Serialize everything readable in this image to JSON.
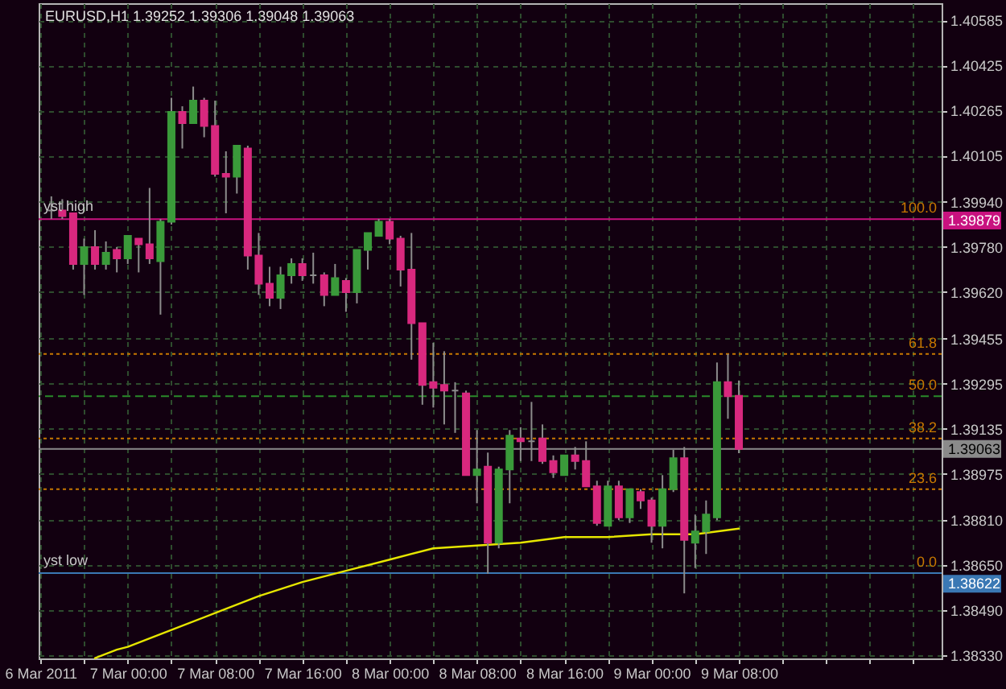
{
  "chart_data": {
    "type": "candlestick",
    "title": "EURUSD,H1 1.39252 1.39306 1.39048 1.39063",
    "x": [
      "2011-03-06T17:00",
      "2011-03-06T18:00",
      "2011-03-06T19:00",
      "2011-03-06T20:00",
      "2011-03-06T21:00",
      "2011-03-06T22:00",
      "2011-03-06T23:00",
      "2011-03-07T00:00",
      "2011-03-07T01:00",
      "2011-03-07T02:00",
      "2011-03-07T03:00",
      "2011-03-07T04:00",
      "2011-03-07T05:00",
      "2011-03-07T06:00",
      "2011-03-07T07:00",
      "2011-03-07T08:00",
      "2011-03-07T09:00",
      "2011-03-07T10:00",
      "2011-03-07T11:00",
      "2011-03-07T12:00",
      "2011-03-07T13:00",
      "2011-03-07T14:00",
      "2011-03-07T15:00",
      "2011-03-07T16:00",
      "2011-03-07T17:00",
      "2011-03-07T18:00",
      "2011-03-07T19:00",
      "2011-03-07T20:00",
      "2011-03-07T21:00",
      "2011-03-07T22:00",
      "2011-03-07T23:00",
      "2011-03-08T00:00",
      "2011-03-08T01:00",
      "2011-03-08T02:00",
      "2011-03-08T03:00",
      "2011-03-08T04:00",
      "2011-03-08T05:00",
      "2011-03-08T06:00",
      "2011-03-08T07:00",
      "2011-03-08T08:00",
      "2011-03-08T09:00",
      "2011-03-08T10:00",
      "2011-03-08T11:00",
      "2011-03-08T12:00",
      "2011-03-08T13:00",
      "2011-03-08T14:00",
      "2011-03-08T15:00",
      "2011-03-08T16:00",
      "2011-03-08T17:00",
      "2011-03-08T18:00",
      "2011-03-08T19:00",
      "2011-03-08T20:00",
      "2011-03-08T21:00",
      "2011-03-08T22:00",
      "2011-03-08T23:00",
      "2011-03-09T00:00",
      "2011-03-09T01:00",
      "2011-03-09T02:00",
      "2011-03-09T03:00",
      "2011-03-09T04:00",
      "2011-03-09T05:00",
      "2011-03-09T06:00",
      "2011-03-09T07:00",
      "2011-03-09T08:00"
    ],
    "ohlc": [
      [
        1.3991,
        1.3996,
        1.3988,
        1.3991
      ],
      [
        1.3991,
        1.3995,
        1.3988,
        1.3989
      ],
      [
        1.399,
        1.399,
        1.397,
        1.3972
      ],
      [
        1.3972,
        1.3981,
        1.3961,
        1.3978
      ],
      [
        1.3978,
        1.3984,
        1.397,
        1.3972
      ],
      [
        1.3972,
        1.398,
        1.397,
        1.3976
      ],
      [
        1.3977,
        1.3978,
        1.3969,
        1.3974
      ],
      [
        1.3974,
        1.3982,
        1.3972,
        1.3982
      ],
      [
        1.3981,
        1.3981,
        1.3969,
        1.3979
      ],
      [
        1.3979,
        1.3999,
        1.3972,
        1.3974
      ],
      [
        1.3973,
        1.3988,
        1.3954,
        1.3987
      ],
      [
        1.3987,
        1.4031,
        1.3986,
        1.4026
      ],
      [
        1.4026,
        1.4028,
        1.4013,
        1.4022
      ],
      [
        1.4022,
        1.4035,
        1.4022,
        1.403
      ],
      [
        1.403,
        1.4031,
        1.4017,
        1.4021
      ],
      [
        1.4021,
        1.403,
        1.4003,
        1.4004
      ],
      [
        1.4004,
        1.4012,
        1.399,
        1.4003
      ],
      [
        1.4003,
        1.4014,
        1.3997,
        1.4014
      ],
      [
        1.4013,
        1.4014,
        1.397,
        1.3975
      ],
      [
        1.3975,
        1.3983,
        1.3961,
        1.3965
      ],
      [
        1.3965,
        1.3971,
        1.3957,
        1.396
      ],
      [
        1.396,
        1.3971,
        1.3956,
        1.3968
      ],
      [
        1.3968,
        1.3974,
        1.3965,
        1.3972
      ],
      [
        1.3972,
        1.3974,
        1.3966,
        1.3968
      ],
      [
        1.3968,
        1.3976,
        1.3965,
        1.3968
      ],
      [
        1.3968,
        1.3969,
        1.3957,
        1.3961
      ],
      [
        1.3961,
        1.3972,
        1.3961,
        1.3967
      ],
      [
        1.3966,
        1.3967,
        1.3955,
        1.3962
      ],
      [
        1.3962,
        1.3977,
        1.3958,
        1.3977
      ],
      [
        1.3977,
        1.3983,
        1.397,
        1.3983
      ],
      [
        1.3982,
        1.3988,
        1.3982,
        1.3987
      ],
      [
        1.3987,
        1.3988,
        1.3979,
        1.3981
      ],
      [
        1.3981,
        1.3982,
        1.3964,
        1.397
      ],
      [
        1.397,
        1.3983,
        1.3938,
        1.3951
      ],
      [
        1.3951,
        1.3951,
        1.3922,
        1.3929
      ],
      [
        1.393,
        1.3944,
        1.3921,
        1.3928
      ],
      [
        1.3929,
        1.3941,
        1.3915,
        1.3927
      ],
      [
        1.3927,
        1.393,
        1.3912,
        1.3927
      ],
      [
        1.3926,
        1.3927,
        1.3897,
        1.3897
      ],
      [
        1.3897,
        1.3913,
        1.3887,
        1.3899
      ],
      [
        1.39,
        1.3905,
        1.3862,
        1.3873
      ],
      [
        1.3873,
        1.39,
        1.3871,
        1.3899
      ],
      [
        1.3899,
        1.3913,
        1.3887,
        1.3911
      ],
      [
        1.391,
        1.3914,
        1.3902,
        1.3909
      ],
      [
        1.3909,
        1.3923,
        1.3902,
        1.3909
      ],
      [
        1.391,
        1.3915,
        1.3901,
        1.3902
      ],
      [
        1.3902,
        1.3904,
        1.3896,
        1.3898
      ],
      [
        1.3897,
        1.3904,
        1.3897,
        1.3904
      ],
      [
        1.3904,
        1.3907,
        1.3899,
        1.3902
      ],
      [
        1.3902,
        1.3909,
        1.3893,
        1.3893
      ],
      [
        1.3893,
        1.3895,
        1.3879,
        1.388
      ],
      [
        1.3879,
        1.3895,
        1.3879,
        1.3893
      ],
      [
        1.3893,
        1.3895,
        1.3881,
        1.3882
      ],
      [
        1.3882,
        1.3892,
        1.388,
        1.3892
      ],
      [
        1.3891,
        1.3892,
        1.3885,
        1.3888
      ],
      [
        1.3888,
        1.3889,
        1.3873,
        1.3879
      ],
      [
        1.3879,
        1.3897,
        1.3871,
        1.3892
      ],
      [
        1.3892,
        1.3906,
        1.3891,
        1.3903
      ],
      [
        1.3903,
        1.3907,
        1.3855,
        1.3874
      ],
      [
        1.3873,
        1.3883,
        1.3864,
        1.3877
      ],
      [
        1.3877,
        1.3888,
        1.3869,
        1.3883
      ],
      [
        1.3882,
        1.3937,
        1.3881,
        1.393
      ],
      [
        1.393,
        1.394,
        1.3917,
        1.3925
      ],
      [
        1.39252,
        1.39306,
        1.39048,
        1.39063
      ]
    ],
    "colors": [
      "#8c8c8c",
      "#d8287e",
      "#d8287e",
      "#3a9a3a",
      "#d8287e",
      "#3a9a3a",
      "#d8287e",
      "#3a9a3a",
      "#d8287e",
      "#d8287e",
      "#3a9a3a",
      "#3a9a3a",
      "#d8287e",
      "#3a9a3a",
      "#d8287e",
      "#d8287e",
      "#d8287e",
      "#3a9a3a",
      "#d8287e",
      "#d8287e",
      "#d8287e",
      "#3a9a3a",
      "#3a9a3a",
      "#d8287e",
      "#8c8c8c",
      "#d8287e",
      "#3a9a3a",
      "#d8287e",
      "#3a9a3a",
      "#3a9a3a",
      "#3a9a3a",
      "#d8287e",
      "#d8287e",
      "#d8287e",
      "#d8287e",
      "#d8287e",
      "#d8287e",
      "#8c8c8c",
      "#d8287e",
      "#3a9a3a",
      "#d8287e",
      "#3a9a3a",
      "#3a9a3a",
      "#d8287e",
      "#8c8c8c",
      "#d8287e",
      "#d8287e",
      "#3a9a3a",
      "#d8287e",
      "#d8287e",
      "#d8287e",
      "#3a9a3a",
      "#d8287e",
      "#3a9a3a",
      "#d8287e",
      "#d8287e",
      "#3a9a3a",
      "#3a9a3a",
      "#d8287e",
      "#3a9a3a",
      "#3a9a3a",
      "#3a9a3a",
      "#d8287e",
      "#d8287e"
    ],
    "series": [
      {
        "type": "line",
        "color": "#e6e600",
        "x": [
          "2011-03-06T21:00",
          "2011-03-06T23:00",
          "2011-03-07T00:00",
          "2011-03-07T04:00",
          "2011-03-07T08:00",
          "2011-03-07T12:00",
          "2011-03-07T16:00",
          "2011-03-07T20:00",
          "2011-03-08T00:00",
          "2011-03-08T04:00",
          "2011-03-08T08:00",
          "2011-03-08T12:00",
          "2011-03-08T16:00",
          "2011-03-08T20:00",
          "2011-03-09T00:00",
          "2011-03-09T04:00",
          "2011-03-09T08:00"
        ],
        "values": [
          1.3832,
          1.3835,
          1.3836,
          1.3842,
          1.3848,
          1.3854,
          1.3859,
          1.3863,
          1.3867,
          1.3871,
          1.3872,
          1.3873,
          1.3875,
          1.3875,
          1.3876,
          1.3876,
          1.3878
        ]
      }
    ],
    "ref_lines": [
      {
        "axis": "y",
        "value": 1.394,
        "color": "#c87800",
        "line_style": "dotted"
      },
      {
        "axis": "y",
        "value": 1.3925,
        "color": "#2a8a2a",
        "line_style": "dashed"
      },
      {
        "axis": "y",
        "value": 1.391,
        "color": "#c87800",
        "line_style": "dotted"
      },
      {
        "axis": "y",
        "value": 1.3892,
        "color": "#c87800",
        "line_style": "dotted"
      },
      {
        "axis": "y",
        "value": 1.39063,
        "color": "#8a8a8a"
      },
      {
        "axis": "y",
        "value": 1.39879,
        "label": "yst high",
        "color": "#c8127f"
      },
      {
        "axis": "y",
        "value": 1.38622,
        "label": "yst low",
        "color": "#3a78b4"
      }
    ],
    "annotations": [
      {
        "text": "100.0",
        "y": 1.39879
      },
      {
        "text": "61.8",
        "y": 1.394
      },
      {
        "text": "50.0",
        "y": 1.3925
      },
      {
        "text": "38.2",
        "y": 1.391
      },
      {
        "text": "23.6",
        "y": 1.3892
      },
      {
        "text": "0.0",
        "y": 1.38622
      }
    ],
    "xlim": [
      "2011-03-06T15:50",
      "2011-03-10T02:35"
    ],
    "xticks": [
      {
        "value": "2011-03-06T16:00",
        "label": "6 Mar 2011"
      },
      {
        "value": "2011-03-06T20:00",
        "label": null
      },
      {
        "value": "2011-03-07T00:00",
        "label": "7 Mar 00:00"
      },
      {
        "value": "2011-03-07T04:00",
        "label": null
      },
      {
        "value": "2011-03-07T08:00",
        "label": "7 Mar 08:00"
      },
      {
        "value": "2011-03-07T12:00",
        "label": null
      },
      {
        "value": "2011-03-07T16:00",
        "label": "7 Mar 16:00"
      },
      {
        "value": "2011-03-07T20:00",
        "label": null
      },
      {
        "value": "2011-03-08T00:00",
        "label": "8 Mar 00:00"
      },
      {
        "value": "2011-03-08T04:00",
        "label": null
      },
      {
        "value": "2011-03-08T08:00",
        "label": "8 Mar 08:00"
      },
      {
        "value": "2011-03-08T12:00",
        "label": null
      },
      {
        "value": "2011-03-08T16:00",
        "label": "8 Mar 16:00"
      },
      {
        "value": "2011-03-08T20:00",
        "label": null
      },
      {
        "value": "2011-03-09T00:00",
        "label": "9 Mar 00:00"
      },
      {
        "value": "2011-03-09T04:00",
        "label": null
      },
      {
        "value": "2011-03-09T08:00",
        "label": "9 Mar 08:00"
      },
      {
        "value": "2011-03-09T12:00",
        "label": null
      },
      {
        "value": "2011-03-09T16:00",
        "label": null
      },
      {
        "value": "2011-03-09T20:00",
        "label": null
      },
      {
        "value": "2011-03-10T00:00",
        "label": null
      }
    ],
    "ylim": [
      1.38319,
      1.40646
    ],
    "yticks": [
      1.40585,
      1.40425,
      1.40265,
      1.40105,
      {
        "value": 1.3994,
        "label": "1.39940"
      },
      1.39879,
      {
        "value": 1.3978,
        "label": "1.39780"
      },
      {
        "value": 1.3962,
        "label": "1.39620"
      },
      1.39455,
      1.39295,
      1.39135,
      1.39063,
      1.38975,
      {
        "value": 1.3881,
        "label": "1.38810"
      },
      {
        "value": 1.3865,
        "label": "1.38650"
      },
      1.38622,
      {
        "value": 1.3849,
        "label": "1.38490"
      },
      {
        "value": 1.3833,
        "label": "1.38330"
      }
    ],
    "grid": true
  }
}
